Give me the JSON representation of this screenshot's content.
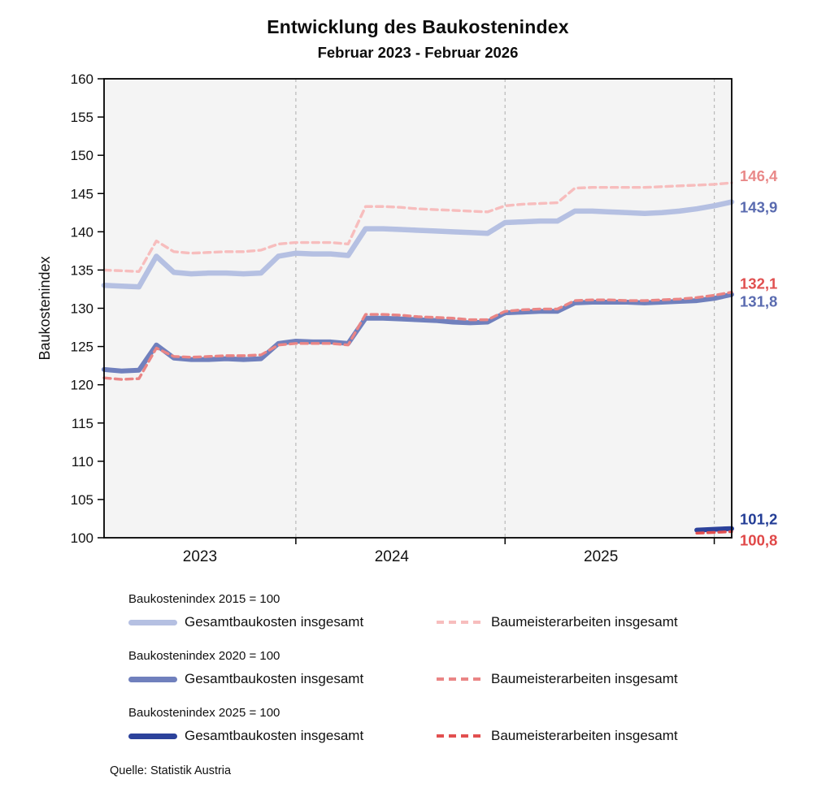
{
  "page": {
    "title": "Entwicklung des Baukostenindex",
    "subtitle": "Februar 2023 - Februar 2026",
    "source": "Quelle: Statistik Austria"
  },
  "chart_data": {
    "type": "line",
    "title": "Entwicklung des Baukostenindex",
    "subtitle": "Februar 2023 - Februar 2026",
    "ylabel": "Baukostenindex",
    "ylim": [
      100,
      160
    ],
    "ytick_step": 5,
    "x_unit": "month",
    "x_range": [
      "2023-02",
      "2026-02"
    ],
    "x_point_count": 37,
    "grid": "vertical-dashed-only",
    "plot_bg": "#f4f4f4",
    "x_gridline_indices": [
      11,
      23,
      35
    ],
    "x_axis_labels": [
      {
        "text": "2023",
        "index": 5.5
      },
      {
        "text": "2024",
        "index": 16.5
      },
      {
        "text": "2025",
        "index": 28.5
      }
    ],
    "series": [
      {
        "id": "bki2015-gesamtbaukosten",
        "group": "Baukostenindex 2015 = 100",
        "name": "Gesamtbaukosten insgesamt",
        "line_style": "solid",
        "color": "#b5c0e2",
        "line_width": 6.5,
        "start_index": 0,
        "values": [
          133.0,
          132.9,
          132.8,
          136.8,
          134.7,
          134.5,
          134.6,
          134.6,
          134.5,
          134.6,
          136.8,
          137.2,
          137.1,
          137.1,
          136.9,
          140.4,
          140.4,
          140.3,
          140.2,
          140.1,
          140.0,
          139.9,
          139.8,
          141.2,
          141.3,
          141.4,
          141.4,
          142.7,
          142.7,
          142.6,
          142.5,
          142.4,
          142.5,
          142.7,
          143.0,
          143.4,
          143.9
        ],
        "end_label": {
          "text": "143,9",
          "color": "#5a6bb0",
          "dy": 8
        }
      },
      {
        "id": "bki2015-baumeisterarbeiten",
        "group": "Baukostenindex 2015 = 100",
        "name": "Baumeisterarbeiten insgesamt",
        "line_style": "dashed",
        "color": "#f7bdbd",
        "line_width": 3.4,
        "start_index": 0,
        "values": [
          135.0,
          134.9,
          134.8,
          138.8,
          137.4,
          137.2,
          137.3,
          137.4,
          137.4,
          137.6,
          138.4,
          138.6,
          138.6,
          138.6,
          138.4,
          143.3,
          143.3,
          143.2,
          143.0,
          142.9,
          142.8,
          142.7,
          142.6,
          143.4,
          143.6,
          143.7,
          143.8,
          145.7,
          145.8,
          145.8,
          145.8,
          145.8,
          145.9,
          146.0,
          146.1,
          146.2,
          146.4
        ],
        "end_label": {
          "text": "146,4",
          "color": "#e98989",
          "dy": -7
        }
      },
      {
        "id": "bki2020-gesamtbaukosten",
        "group": "Baukostenindex 2020 = 100",
        "name": "Gesamtbaukosten insgesamt",
        "line_style": "solid",
        "color": "#7080bd",
        "line_width": 6,
        "start_index": 0,
        "values": [
          122.0,
          121.8,
          121.9,
          125.2,
          123.5,
          123.3,
          123.3,
          123.4,
          123.3,
          123.4,
          125.4,
          125.7,
          125.6,
          125.6,
          125.4,
          128.7,
          128.7,
          128.6,
          128.5,
          128.4,
          128.2,
          128.1,
          128.2,
          129.4,
          129.5,
          129.6,
          129.6,
          130.7,
          130.8,
          130.8,
          130.8,
          130.7,
          130.8,
          130.9,
          131.0,
          131.3,
          131.8
        ],
        "end_label": {
          "text": "131,8",
          "color": "#5a6bb0",
          "dy": 10
        }
      },
      {
        "id": "bki2020-baumeisterarbeiten",
        "group": "Baukostenindex 2020 = 100",
        "name": "Baumeisterarbeiten insgesamt",
        "line_style": "dashed",
        "color": "#ea8585",
        "line_width": 3.4,
        "start_index": 0,
        "values": [
          120.9,
          120.7,
          120.8,
          124.8,
          123.7,
          123.6,
          123.7,
          123.8,
          123.8,
          123.9,
          125.2,
          125.4,
          125.4,
          125.4,
          125.2,
          129.2,
          129.2,
          129.1,
          128.9,
          128.8,
          128.7,
          128.5,
          128.5,
          129.6,
          129.8,
          129.9,
          129.9,
          131.0,
          131.1,
          131.1,
          131.0,
          131.0,
          131.1,
          131.2,
          131.4,
          131.7,
          132.1
        ],
        "end_label": {
          "text": "132,1",
          "color": "#e05050",
          "dy": -9
        }
      },
      {
        "id": "bki2025-gesamtbaukosten",
        "group": "Baukostenindex 2025 = 100",
        "name": "Gesamtbaukosten insgesamt",
        "line_style": "solid",
        "color": "#2c429b",
        "line_width": 6,
        "start_index": 34,
        "values": [
          101.0,
          101.1,
          101.2
        ],
        "end_label": {
          "text": "101,2",
          "color": "#233d96",
          "dy": -10
        }
      },
      {
        "id": "bki2025-baumeisterarbeiten",
        "group": "Baukostenindex 2025 = 100",
        "name": "Baumeisterarbeiten insgesamt",
        "line_style": "dashed",
        "color": "#e24f4f",
        "line_width": 3.4,
        "start_index": 34,
        "values": [
          100.6,
          100.7,
          100.8
        ],
        "end_label": {
          "text": "100,8",
          "color": "#e04848",
          "dy": 12
        }
      }
    ],
    "legend_position": "below",
    "legend_groups": [
      {
        "heading": "Baukostenindex 2015 = 100",
        "items": [
          {
            "label": "Gesamtbaukosten insgesamt",
            "style": "solid",
            "color": "#b5c0e2"
          },
          {
            "label": "Baumeisterarbeiten insgesamt",
            "style": "dashed",
            "color": "#f7bdbd"
          }
        ]
      },
      {
        "heading": "Baukostenindex 2020 = 100",
        "items": [
          {
            "label": "Gesamtbaukosten insgesamt",
            "style": "solid",
            "color": "#7080bd"
          },
          {
            "label": "Baumeisterarbeiten insgesamt",
            "style": "dashed",
            "color": "#ea8585"
          }
        ]
      },
      {
        "heading": "Baukostenindex 2025 = 100",
        "items": [
          {
            "label": "Gesamtbaukosten insgesamt",
            "style": "solid",
            "color": "#2c429b"
          },
          {
            "label": "Baumeisterarbeiten insgesamt",
            "style": "dashed",
            "color": "#e24f4f"
          }
        ]
      }
    ]
  }
}
